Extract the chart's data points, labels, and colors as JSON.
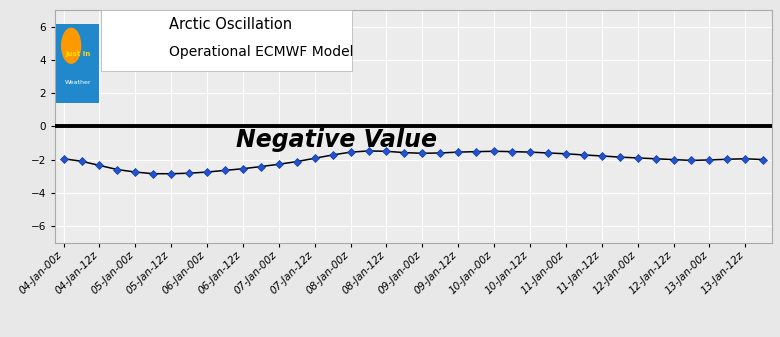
{
  "title_line1": "Arctic Oscillation",
  "title_line2": "Operational ECMWF Model",
  "annotation": "Negative Value",
  "ylim": [
    -7,
    7
  ],
  "yticks": [
    -6,
    -4,
    -2,
    0,
    2,
    4,
    6
  ],
  "bg_color": "#e8e8e8",
  "plot_bg_color": "#ececec",
  "line_color": "#000000",
  "marker_color": "#2255cc",
  "marker_edge_color": "#1133aa",
  "zero_line_color": "#000000",
  "x_labels": [
    "04-Jan-00z",
    "04-Jan-12z",
    "05-Jan-00z",
    "05-Jan-12z",
    "06-Jan-00z",
    "06-Jan-12z",
    "07-Jan-00z",
    "07-Jan-12z",
    "08-Jan-00z",
    "08-Jan-12z",
    "09-Jan-00z",
    "09-Jan-12z",
    "10-Jan-00z",
    "10-Jan-12z",
    "11-Jan-00z",
    "11-Jan-12z",
    "12-Jan-00z",
    "12-Jan-12z",
    "13-Jan-00z",
    "13-Jan-12z"
  ],
  "y_values": [
    -1.95,
    -2.1,
    -2.35,
    -2.6,
    -2.75,
    -2.85,
    -2.85,
    -2.82,
    -2.75,
    -2.65,
    -2.55,
    -2.42,
    -2.28,
    -2.12,
    -1.92,
    -1.72,
    -1.55,
    -1.48,
    -1.5,
    -1.58,
    -1.62,
    -1.6,
    -1.55,
    -1.52,
    -1.5,
    -1.52,
    -1.55,
    -1.6,
    -1.65,
    -1.72,
    -1.78,
    -1.85,
    -1.9,
    -1.95,
    -2.0,
    -2.05,
    -2.02,
    -1.98,
    -1.95,
    -2.0
  ],
  "title_fontsize": 10.5,
  "annotation_fontsize": 17,
  "tick_fontsize": 7.5
}
